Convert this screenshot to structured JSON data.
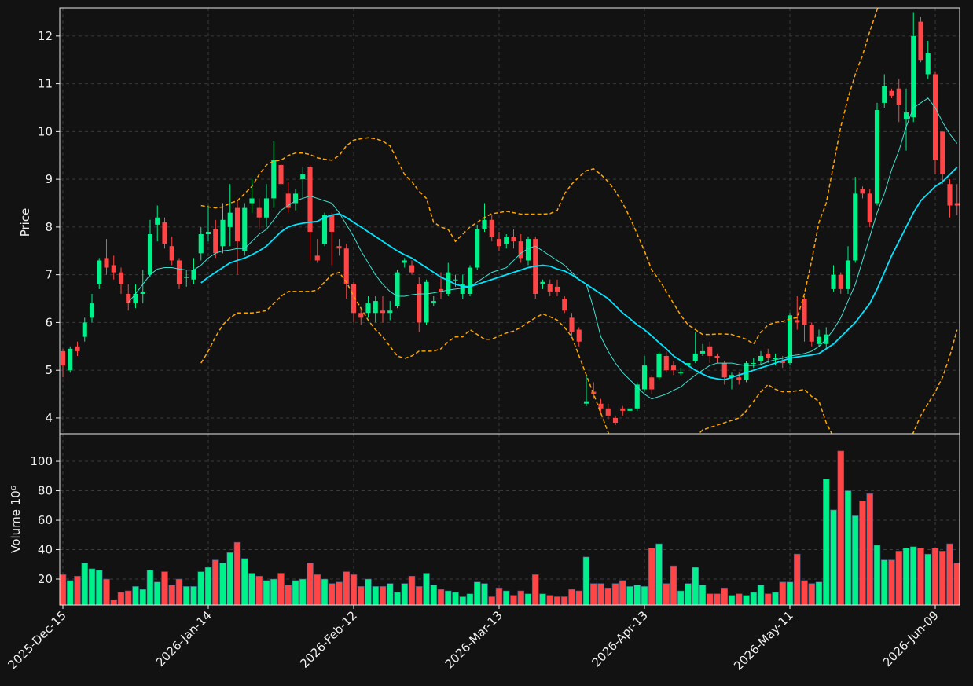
{
  "chart_data": {
    "type": "candlestick",
    "ylabel": "Price",
    "volume_ylabel": "Volume  10⁶",
    "up_color": "#00f08a",
    "down_color": "#ff4545",
    "grid": true,
    "categories": [
      "2025-Dec-15",
      null,
      null,
      null,
      null,
      null,
      null,
      null,
      null,
      null,
      null,
      null,
      null,
      null,
      null,
      null,
      null,
      null,
      null,
      null,
      "2026-Jan-14",
      null,
      null,
      null,
      null,
      null,
      null,
      null,
      null,
      null,
      null,
      null,
      null,
      null,
      null,
      null,
      null,
      null,
      null,
      null,
      "2026-Feb-12",
      null,
      null,
      null,
      null,
      null,
      null,
      null,
      null,
      null,
      null,
      null,
      null,
      null,
      null,
      null,
      null,
      null,
      null,
      null,
      "2026-Mar-13",
      null,
      null,
      null,
      null,
      null,
      null,
      null,
      null,
      null,
      null,
      null,
      null,
      null,
      null,
      null,
      null,
      null,
      null,
      null,
      "2026-Apr-13",
      null,
      null,
      null,
      null,
      null,
      null,
      null,
      null,
      null,
      null,
      null,
      null,
      null,
      null,
      null,
      null,
      null,
      null,
      null,
      "2026-May-11",
      null,
      null,
      null,
      null,
      null,
      null,
      null,
      null,
      null,
      null,
      null,
      null,
      null,
      null,
      null,
      null,
      null,
      null,
      null,
      "2026-Jun-09",
      null,
      null,
      null
    ],
    "open": [
      5.4,
      5.0,
      5.5,
      5.7,
      6.1,
      6.8,
      7.35,
      7.2,
      7.05,
      6.6,
      6.4,
      6.6,
      7.0,
      8.05,
      8.1,
      7.6,
      7.3,
      6.95,
      6.9,
      7.45,
      7.85,
      7.95,
      7.6,
      8.0,
      8.4,
      7.5,
      8.5,
      8.4,
      8.2,
      8.6,
      9.3,
      8.7,
      8.5,
      9.0,
      9.25,
      7.4,
      7.65,
      8.25,
      7.6,
      7.55,
      6.8,
      6.2,
      6.2,
      6.2,
      6.25,
      6.2,
      6.35,
      7.25,
      7.2,
      6.8,
      6.0,
      6.4,
      6.7,
      6.6,
      6.9,
      6.6,
      6.6,
      7.15,
      7.95,
      8.15,
      7.75,
      7.65,
      7.8,
      7.7,
      7.3,
      7.75,
      6.8,
      6.8,
      6.75,
      6.5,
      6.1,
      5.85,
      4.3,
      4.55,
      4.3,
      4.2,
      4.0,
      4.2,
      4.15,
      4.2,
      4.6,
      4.85,
      4.85,
      5.3,
      5.1,
      4.95,
      5.1,
      5.2,
      5.35,
      5.5,
      5.3,
      5.15,
      4.85,
      4.85,
      4.8,
      5.15,
      5.2,
      5.35,
      5.25,
      5.2,
      5.15,
      6.05,
      6.5,
      5.95,
      5.55,
      5.55,
      6.7,
      7.0,
      6.7,
      7.3,
      8.8,
      8.7,
      8.5,
      10.6,
      10.85,
      10.9,
      10.25,
      10.3,
      12.3,
      11.2,
      11.2,
      10.0,
      8.9,
      8.5
    ],
    "high": [
      5.45,
      5.5,
      5.6,
      6.1,
      6.6,
      7.35,
      7.75,
      7.4,
      7.15,
      6.8,
      6.8,
      7.1,
      8.15,
      8.45,
      8.2,
      7.8,
      7.35,
      7.1,
      7.35,
      8.0,
      8.45,
      8.15,
      8.5,
      8.9,
      8.55,
      8.5,
      9.0,
      8.6,
      8.9,
      9.8,
      9.4,
      8.95,
      8.8,
      9.25,
      9.3,
      7.75,
      8.3,
      8.3,
      7.75,
      7.65,
      6.85,
      6.3,
      6.55,
      6.55,
      6.55,
      6.45,
      7.1,
      7.35,
      7.3,
      6.95,
      6.9,
      6.55,
      7.05,
      7.25,
      7.0,
      7.0,
      7.2,
      8.05,
      8.5,
      8.25,
      7.9,
      7.85,
      7.95,
      7.85,
      7.8,
      7.8,
      6.9,
      6.9,
      6.9,
      6.55,
      6.2,
      5.9,
      4.9,
      4.75,
      4.4,
      4.3,
      4.05,
      4.25,
      4.3,
      4.75,
      5.3,
      4.9,
      5.4,
      5.4,
      5.2,
      5.05,
      5.2,
      5.8,
      5.55,
      5.6,
      5.35,
      5.2,
      4.95,
      4.95,
      5.2,
      5.25,
      5.4,
      5.45,
      5.35,
      5.3,
      6.2,
      6.55,
      6.55,
      6.0,
      5.85,
      5.9,
      7.2,
      7.05,
      7.6,
      9.05,
      8.85,
      8.8,
      10.6,
      11.2,
      10.9,
      11.1,
      10.9,
      12.5,
      12.4,
      11.9,
      11.25,
      10.0,
      9.0,
      8.9
    ],
    "low": [
      4.85,
      4.95,
      5.3,
      5.6,
      6.0,
      6.7,
      7.0,
      6.9,
      6.6,
      6.25,
      6.3,
      6.4,
      6.95,
      7.7,
      7.55,
      7.2,
      6.7,
      6.75,
      6.8,
      7.3,
      7.7,
      7.35,
      7.45,
      7.6,
      7.0,
      7.4,
      8.3,
      7.95,
      8.0,
      8.4,
      8.3,
      8.3,
      8.35,
      8.6,
      7.3,
      7.25,
      7.6,
      7.2,
      7.4,
      6.5,
      6.0,
      5.95,
      6.1,
      6.0,
      6.0,
      6.05,
      6.3,
      7.15,
      7.0,
      5.8,
      5.95,
      6.35,
      6.5,
      6.55,
      6.75,
      6.5,
      6.55,
      7.1,
      7.9,
      7.7,
      7.5,
      7.55,
      7.55,
      7.25,
      7.2,
      6.5,
      6.7,
      6.55,
      6.55,
      6.2,
      5.7,
      5.5,
      4.25,
      4.4,
      4.1,
      3.95,
      3.85,
      4.05,
      4.1,
      4.15,
      4.55,
      4.5,
      4.8,
      4.95,
      4.9,
      4.9,
      4.75,
      5.15,
      5.3,
      5.15,
      5.15,
      4.7,
      4.6,
      4.7,
      4.75,
      5.05,
      5.1,
      5.15,
      5.1,
      5.05,
      5.1,
      5.85,
      5.6,
      5.5,
      5.5,
      5.45,
      6.65,
      6.6,
      6.6,
      7.25,
      8.6,
      8.0,
      8.45,
      10.5,
      10.7,
      10.2,
      9.6,
      10.2,
      11.45,
      11.1,
      9.1,
      8.9,
      8.2,
      8.25
    ],
    "close": [
      5.1,
      5.45,
      5.4,
      6.0,
      6.4,
      7.3,
      7.15,
      7.05,
      6.8,
      6.4,
      6.6,
      6.65,
      7.85,
      8.2,
      7.65,
      7.3,
      6.8,
      6.95,
      7.1,
      7.85,
      7.9,
      7.45,
      8.15,
      8.3,
      7.7,
      8.4,
      8.6,
      8.2,
      8.6,
      9.4,
      8.9,
      8.4,
      8.7,
      9.1,
      7.9,
      7.3,
      8.25,
      7.9,
      7.55,
      6.8,
      6.2,
      6.1,
      6.4,
      6.45,
      6.2,
      6.25,
      7.05,
      7.3,
      7.05,
      6.0,
      6.85,
      6.45,
      6.65,
      7.05,
      6.9,
      6.8,
      7.15,
      7.95,
      8.15,
      7.8,
      7.6,
      7.8,
      7.7,
      7.35,
      7.75,
      6.6,
      6.85,
      6.65,
      6.65,
      6.25,
      5.8,
      5.6,
      4.35,
      4.5,
      4.2,
      4.05,
      3.9,
      4.15,
      4.2,
      4.7,
      5.1,
      4.6,
      5.35,
      5.0,
      5.0,
      4.95,
      5.15,
      5.35,
      5.4,
      5.3,
      5.25,
      4.85,
      4.9,
      4.8,
      5.15,
      5.15,
      5.3,
      5.25,
      5.25,
      5.15,
      6.15,
      6.0,
      5.95,
      5.6,
      5.7,
      5.75,
      7.0,
      6.7,
      7.3,
      8.7,
      8.7,
      8.1,
      10.45,
      10.95,
      10.75,
      10.55,
      10.4,
      12.0,
      11.5,
      11.65,
      9.4,
      9.1,
      8.45,
      8.45
    ],
    "volume": [
      23,
      19,
      22,
      31,
      27,
      26,
      20,
      6,
      11,
      12,
      15,
      13,
      26,
      18,
      25,
      16,
      20,
      15,
      15,
      25,
      28,
      33,
      31,
      38,
      45,
      34,
      24,
      22,
      19,
      20,
      24,
      16,
      19,
      20,
      31,
      23,
      20,
      17,
      18,
      25,
      23,
      15,
      20,
      15,
      15,
      17,
      11,
      17,
      22,
      15,
      24,
      16,
      13,
      12,
      11,
      8,
      10,
      18,
      17,
      8,
      14,
      12,
      9,
      12,
      10,
      23,
      10,
      9,
      8,
      8,
      13,
      12,
      35,
      17,
      17,
      14,
      17,
      19,
      15,
      16,
      15,
      41,
      44,
      17,
      29,
      12,
      17,
      28,
      16,
      10,
      10,
      14,
      9,
      10,
      9,
      11,
      16,
      10,
      11,
      18,
      18,
      37,
      19,
      17,
      18,
      88,
      67,
      107,
      80,
      63,
      73,
      78,
      43,
      33,
      33,
      39,
      41,
      42,
      41,
      37,
      41,
      39,
      44,
      31
    ],
    "overlays": [
      {
        "color": "#40e0d0",
        "width": 1,
        "dashed": false,
        "values": [
          null,
          null,
          null,
          null,
          null,
          null,
          null,
          null,
          null,
          6.42,
          6.6,
          6.8,
          7.0,
          7.12,
          7.15,
          7.15,
          7.12,
          7.1,
          7.1,
          7.2,
          7.35,
          7.45,
          7.5,
          7.52,
          7.55,
          7.55,
          7.7,
          7.85,
          7.95,
          8.15,
          8.35,
          8.45,
          8.55,
          8.6,
          8.65,
          8.6,
          8.55,
          8.5,
          8.3,
          8.05,
          7.8,
          7.5,
          7.25,
          7.0,
          6.8,
          6.65,
          6.55,
          6.55,
          6.58,
          6.6,
          6.6,
          6.62,
          6.65,
          6.68,
          6.7,
          6.72,
          6.75,
          6.85,
          6.95,
          7.05,
          7.1,
          7.15,
          7.3,
          7.45,
          7.55,
          7.6,
          7.5,
          7.4,
          7.3,
          7.2,
          7.05,
          6.9,
          6.8,
          6.3,
          5.7,
          5.4,
          5.15,
          4.95,
          4.8,
          4.65,
          4.5,
          4.4,
          4.45,
          4.5,
          4.58,
          4.65,
          4.78,
          4.9,
          5.0,
          5.1,
          5.15,
          5.15,
          5.15,
          5.12,
          5.1,
          5.1,
          5.12,
          5.18,
          5.22,
          5.25,
          5.3,
          5.32,
          5.35,
          5.4,
          5.5,
          5.65,
          5.85,
          6.1,
          6.45,
          6.8,
          7.3,
          7.8,
          8.3,
          8.7,
          9.2,
          9.6,
          10.1,
          10.5,
          10.6,
          10.7,
          10.5,
          10.2,
          9.95,
          9.75
        ]
      },
      {
        "color": "#00e5ff",
        "width": 1.8,
        "dashed": false,
        "values": [
          null,
          null,
          null,
          null,
          null,
          null,
          null,
          null,
          null,
          null,
          null,
          null,
          null,
          null,
          null,
          null,
          null,
          null,
          null,
          6.83,
          6.95,
          7.05,
          7.15,
          7.25,
          7.3,
          7.35,
          7.42,
          7.5,
          7.6,
          7.75,
          7.9,
          8.0,
          8.05,
          8.08,
          8.1,
          8.12,
          8.2,
          8.25,
          8.28,
          8.2,
          8.1,
          8.0,
          7.9,
          7.8,
          7.7,
          7.6,
          7.5,
          7.42,
          7.35,
          7.25,
          7.15,
          7.05,
          6.95,
          6.88,
          6.8,
          6.76,
          6.75,
          6.8,
          6.85,
          6.9,
          6.95,
          7.0,
          7.05,
          7.1,
          7.15,
          7.18,
          7.2,
          7.18,
          7.12,
          7.08,
          7.0,
          6.9,
          6.8,
          6.7,
          6.6,
          6.5,
          6.35,
          6.2,
          6.08,
          5.95,
          5.85,
          5.72,
          5.58,
          5.45,
          5.3,
          5.2,
          5.1,
          5.0,
          4.92,
          4.85,
          4.82,
          4.8,
          4.85,
          4.9,
          4.95,
          5.0,
          5.05,
          5.1,
          5.15,
          5.2,
          5.25,
          5.28,
          5.3,
          5.32,
          5.35,
          5.45,
          5.55,
          5.7,
          5.85,
          6.0,
          6.2,
          6.4,
          6.7,
          7.05,
          7.4,
          7.7,
          8.0,
          8.3,
          8.55,
          8.7,
          8.85,
          8.95,
          9.1,
          9.25
        ]
      },
      {
        "color": "#ffa500",
        "width": 1.5,
        "dashed": true,
        "values": [
          null,
          null,
          null,
          null,
          null,
          null,
          null,
          null,
          null,
          null,
          null,
          null,
          null,
          null,
          null,
          null,
          null,
          null,
          null,
          8.45,
          8.42,
          8.4,
          8.42,
          8.5,
          8.55,
          8.7,
          8.85,
          9.1,
          9.3,
          9.38,
          9.4,
          9.5,
          9.55,
          9.55,
          9.52,
          9.45,
          9.42,
          9.4,
          9.5,
          9.7,
          9.82,
          9.85,
          9.87,
          9.85,
          9.8,
          9.7,
          9.4,
          9.1,
          8.95,
          8.75,
          8.6,
          8.1,
          8.0,
          7.95,
          7.7,
          7.85,
          8.0,
          8.1,
          8.2,
          8.28,
          8.3,
          8.33,
          8.3,
          8.27,
          8.27,
          8.27,
          8.27,
          8.28,
          8.35,
          8.7,
          8.9,
          9.05,
          9.18,
          9.22,
          9.1,
          8.95,
          8.75,
          8.5,
          8.2,
          7.85,
          7.5,
          7.1,
          6.9,
          6.65,
          6.4,
          6.15,
          5.95,
          5.85,
          5.75,
          5.75,
          5.76,
          5.76,
          5.75,
          5.7,
          5.65,
          5.55,
          5.8,
          5.95,
          6.0,
          6.02,
          6.08,
          6.1,
          6.6,
          7.3,
          8.1,
          8.5,
          9.3,
          10.1,
          10.7,
          11.2,
          11.6,
          12.1,
          12.55,
          13.0,
          13.5,
          14.0,
          14.3,
          14.5,
          14.6,
          14.6,
          14.5,
          14.4,
          14.3,
          14.2
        ]
      },
      {
        "color": "#ffa500",
        "width": 1.5,
        "dashed": true,
        "values": [
          null,
          null,
          null,
          null,
          null,
          null,
          null,
          null,
          null,
          null,
          null,
          null,
          null,
          null,
          null,
          null,
          null,
          null,
          null,
          5.15,
          5.4,
          5.7,
          5.95,
          6.1,
          6.2,
          6.2,
          6.2,
          6.22,
          6.25,
          6.4,
          6.55,
          6.65,
          6.65,
          6.65,
          6.65,
          6.68,
          6.85,
          7.0,
          7.05,
          6.85,
          6.55,
          6.3,
          6.05,
          5.85,
          5.7,
          5.5,
          5.3,
          5.25,
          5.3,
          5.4,
          5.4,
          5.4,
          5.45,
          5.6,
          5.7,
          5.7,
          5.85,
          5.75,
          5.65,
          5.65,
          5.72,
          5.78,
          5.82,
          5.9,
          6.0,
          6.1,
          6.18,
          6.12,
          6.05,
          5.9,
          5.7,
          5.3,
          4.9,
          4.5,
          4.1,
          3.7,
          3.3,
          2.9,
          2.6,
          2.4,
          2.3,
          2.3,
          2.4,
          2.6,
          2.9,
          3.2,
          3.45,
          3.6,
          3.75,
          3.8,
          3.85,
          3.9,
          3.95,
          4.0,
          4.15,
          4.35,
          4.55,
          4.7,
          4.6,
          4.55,
          4.55,
          4.57,
          4.6,
          4.45,
          4.35,
          3.9,
          3.6,
          3.3,
          3.0,
          2.8,
          2.6,
          2.5,
          2.5,
          2.6,
          2.8,
          3.1,
          3.4,
          3.7,
          4.05,
          4.3,
          4.55,
          4.85,
          5.3,
          5.85
        ]
      }
    ],
    "ylim": [
      3.67,
      12.59
    ],
    "yticks": [
      4,
      5,
      6,
      7,
      8,
      9,
      10,
      11,
      12
    ],
    "volume_ylim": [
      2.4,
      118.7
    ],
    "volume_yticks": [
      20,
      40,
      60,
      80,
      100
    ]
  }
}
